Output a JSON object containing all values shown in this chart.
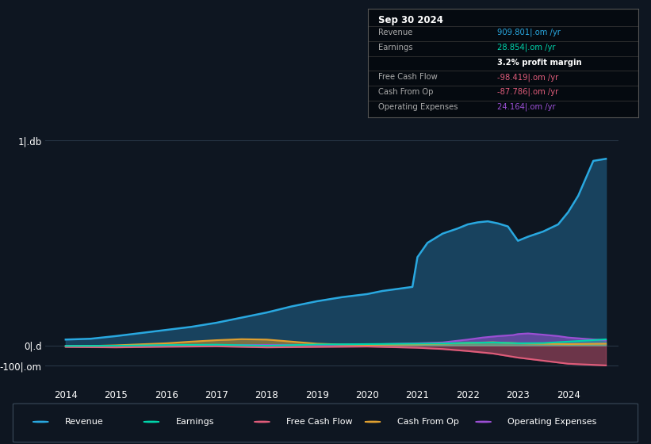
{
  "bg_color": "#0e1621",
  "plot_bg_color": "#0e1621",
  "revenue_color": "#29a8e0",
  "earnings_color": "#00d4aa",
  "free_cash_flow_color": "#e05c7a",
  "cash_from_op_color": "#e0a030",
  "operating_expenses_color": "#9b4fd4",
  "revenue_fill_color": "#1a4a6a",
  "ytick_labels": [
    "-100|.om",
    "0|.d",
    "1|.db"
  ],
  "ytick_values": [
    -100,
    0,
    1000
  ],
  "xtick_values": [
    2014,
    2015,
    2016,
    2017,
    2018,
    2019,
    2020,
    2021,
    2022,
    2023,
    2024
  ],
  "xlim": [
    2013.6,
    2025.0
  ],
  "ylim": [
    -200,
    1100
  ],
  "legend_items": [
    {
      "label": "Revenue",
      "color": "#29a8e0"
    },
    {
      "label": "Earnings",
      "color": "#00d4aa"
    },
    {
      "label": "Free Cash Flow",
      "color": "#e05c7a"
    },
    {
      "label": "Cash From Op",
      "color": "#e0a030"
    },
    {
      "label": "Operating Expenses",
      "color": "#9b4fd4"
    }
  ],
  "info_box_title": "Sep 30 2024",
  "info_rows": [
    {
      "label": "Revenue",
      "value": "909.801|.om /yr",
      "value_color": "#29a8e0",
      "bold_val": false
    },
    {
      "label": "Earnings",
      "value": "28.854|.om /yr",
      "value_color": "#00d4aa",
      "bold_val": false
    },
    {
      "label": "",
      "value": "3.2% profit margin",
      "value_color": "#ffffff",
      "bold_val": true
    },
    {
      "label": "Free Cash Flow",
      "value": "-98.419|.om /yr",
      "value_color": "#e05c7a",
      "bold_val": false
    },
    {
      "label": "Cash From Op",
      "value": "-87.786|.om /yr",
      "value_color": "#e05c7a",
      "bold_val": false
    },
    {
      "label": "Operating Expenses",
      "value": "24.164|.om /yr",
      "value_color": "#9b4fd4",
      "bold_val": false
    }
  ]
}
